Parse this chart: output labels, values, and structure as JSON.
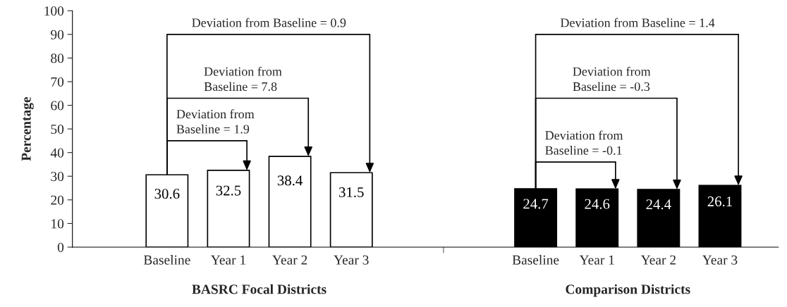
{
  "chart_data": {
    "type": "bar",
    "ylabel": "Percentage",
    "categories": [
      "Baseline",
      "Year 1",
      "Year 2",
      "Year 3",
      null,
      null,
      "Baseline",
      "Year 1",
      "Year 2",
      "Year 3"
    ],
    "values": [
      30.6,
      32.5,
      38.4,
      31.5,
      null,
      null,
      24.7,
      24.6,
      24.4,
      26.1
    ],
    "colors": [
      "#ffffff",
      "#ffffff",
      "#ffffff",
      "#ffffff",
      "#ffffff",
      "#ffffff",
      "#000000",
      "#000000",
      "#000000",
      "#000000"
    ],
    "data_labels": true,
    "ylim": [
      0,
      100
    ],
    "yticks": [
      0,
      10,
      20,
      30,
      40,
      50,
      60,
      70,
      80,
      90,
      100
    ],
    "grid": false,
    "legend": false,
    "annotations": [
      {
        "text": "Deviation from\nBaseline = 1.9",
        "x": "Year 1",
        "y": 32.5
      },
      "Deviation from\nBaseline = 7.8",
      "Deviation from Baseline = 0.9",
      {
        "text": "Deviation from\nBaseline = -0.1",
        "y": 24.6
      },
      "Deviation from\nBaseline = -0.3",
      "Deviation from Baseline = 1.4",
      "BASRC Focal Districts",
      "Comparison Districts"
    ]
  }
}
